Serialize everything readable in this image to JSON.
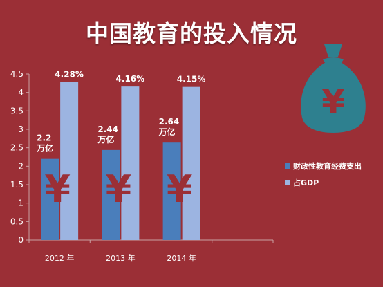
{
  "title": "中国教育的投入情况",
  "colors": {
    "background": "#9b2f36",
    "primary_bar": "#4a7ebb",
    "secondary_bar": "#9cb4e1",
    "money_bag": "#2e808f",
    "yen_mark": "#9b2f36"
  },
  "icons": {
    "money_bag": "money-bag-yen-icon",
    "bar_mark": "yen-sign"
  },
  "chart_data": {
    "type": "bar",
    "categories": [
      "2012 年",
      "2013 年",
      "2014 年"
    ],
    "ylim": [
      0,
      4.5
    ],
    "yticks": [
      "0",
      "0.5",
      "1",
      "1.5",
      "2",
      "2.5",
      "3",
      "3.5",
      "4",
      "4.5"
    ],
    "grid": false,
    "legend_position": "right",
    "bar_symbol": "¥",
    "series": [
      {
        "name": "财政性教育经费支出",
        "values": [
          2.2,
          2.44,
          2.64
        ],
        "labels": [
          [
            "2.2",
            "万亿"
          ],
          [
            "2.44",
            "万亿"
          ],
          [
            "2.64",
            "万亿"
          ]
        ]
      },
      {
        "name": "占GDP",
        "values": [
          4.28,
          4.16,
          4.15
        ],
        "labels": [
          "4.28%",
          "4.16%",
          "4.15%"
        ]
      }
    ]
  }
}
